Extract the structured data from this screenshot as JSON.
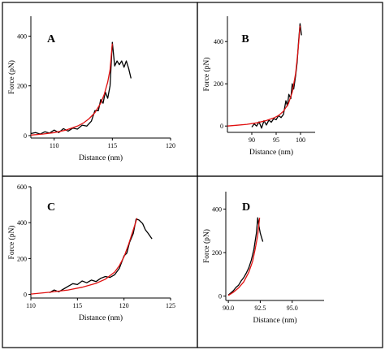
{
  "chart_data": [
    {
      "type": "line",
      "panel_label": "A",
      "xlabel": "Distance (nm)",
      "ylabel": "Force (pN)",
      "xlim": [
        108,
        120
      ],
      "ylim": [
        -10,
        480
      ],
      "xticks": [
        110,
        115,
        120
      ],
      "yticks": [
        0,
        200,
        400
      ],
      "series": [
        {
          "role": "measured",
          "color": "#000000",
          "x": [
            108.0,
            108.4,
            108.8,
            109.2,
            109.6,
            110.0,
            110.4,
            110.8,
            111.2,
            111.6,
            112.0,
            112.4,
            112.8,
            113.2,
            113.5,
            113.8,
            114.0,
            114.2,
            114.4,
            114.6,
            114.8,
            115.0,
            115.2,
            115.4,
            115.6,
            115.8,
            116.0,
            116.2,
            116.4,
            116.6
          ],
          "y": [
            8,
            12,
            6,
            15,
            10,
            22,
            12,
            28,
            18,
            30,
            26,
            42,
            38,
            58,
            100,
            100,
            145,
            130,
            175,
            150,
            200,
            375,
            280,
            300,
            285,
            300,
            275,
            300,
            270,
            230
          ]
        },
        {
          "role": "fit",
          "color": "#e01010",
          "x": [
            108.0,
            109.0,
            110.0,
            111.0,
            112.0,
            112.5,
            113.0,
            113.5,
            114.0,
            114.3,
            114.6,
            114.8,
            115.0
          ],
          "y": [
            2,
            6,
            12,
            22,
            38,
            50,
            68,
            92,
            130,
            165,
            215,
            265,
            370
          ]
        }
      ]
    },
    {
      "type": "line",
      "panel_label": "B",
      "xlabel": "Distance (nm)",
      "ylabel": "Force (pN)",
      "xlim": [
        85,
        103
      ],
      "ylim": [
        -30,
        520
      ],
      "xticks": [
        90,
        95,
        100
      ],
      "yticks": [
        0,
        200,
        400
      ],
      "series": [
        {
          "role": "measured",
          "color": "#000000",
          "x": [
            90.0,
            90.5,
            91.0,
            91.5,
            92.0,
            92.5,
            93.0,
            93.5,
            94.0,
            94.5,
            95.0,
            95.5,
            96.0,
            96.5,
            97.0,
            97.3,
            97.6,
            98.0,
            98.3,
            98.6,
            99.0,
            99.3,
            99.6,
            99.9,
            100.2
          ],
          "y": [
            -5,
            10,
            0,
            20,
            -10,
            25,
            5,
            28,
            18,
            35,
            30,
            50,
            40,
            55,
            120,
            95,
            150,
            130,
            200,
            175,
            240,
            300,
            400,
            485,
            430
          ]
        },
        {
          "role": "fit",
          "color": "#e01010",
          "x": [
            85.0,
            87.0,
            89.0,
            91.0,
            93.0,
            94.5,
            95.5,
            96.5,
            97.5,
            98.3,
            99.0,
            99.5,
            99.9
          ],
          "y": [
            0,
            4,
            8,
            15,
            26,
            38,
            50,
            70,
            105,
            160,
            250,
            360,
            475
          ]
        }
      ]
    },
    {
      "type": "line",
      "panel_label": "C",
      "xlabel": "Distance (nm)",
      "ylabel": "Force (pN)",
      "xlim": [
        110,
        125
      ],
      "ylim": [
        -20,
        600
      ],
      "xticks": [
        110,
        115,
        120,
        125
      ],
      "yticks": [
        0,
        200,
        400,
        600
      ],
      "series": [
        {
          "role": "measured",
          "color": "#000000",
          "x": [
            112.0,
            112.5,
            113.0,
            113.5,
            114.0,
            114.5,
            115.0,
            115.5,
            116.0,
            116.5,
            117.0,
            117.5,
            118.0,
            118.5,
            119.0,
            119.5,
            120.0,
            120.3,
            120.6,
            121.0,
            121.3,
            121.6,
            122.0,
            122.3,
            122.6,
            123.0
          ],
          "y": [
            10,
            25,
            15,
            30,
            45,
            60,
            55,
            75,
            65,
            80,
            72,
            90,
            100,
            95,
            110,
            145,
            215,
            230,
            290,
            340,
            420,
            415,
            395,
            360,
            340,
            310
          ]
        },
        {
          "role": "fit",
          "color": "#e01010",
          "x": [
            110.0,
            112.0,
            114.0,
            115.5,
            117.0,
            118.0,
            119.0,
            119.5,
            120.0,
            120.5,
            121.0,
            121.4
          ],
          "y": [
            2,
            12,
            25,
            40,
            62,
            85,
            125,
            160,
            210,
            280,
            360,
            425
          ]
        }
      ]
    },
    {
      "type": "line",
      "panel_label": "D",
      "xlabel": "Distance (nm)",
      "ylabel": "Force (pN)",
      "xlim": [
        89.8,
        97.5
      ],
      "ylim": [
        -20,
        480
      ],
      "xticks": [
        90.0,
        92.5,
        95.0
      ],
      "xtick_labels": [
        "90.0",
        "92.5",
        "95.0"
      ],
      "yticks": [
        0,
        200,
        400
      ],
      "series": [
        {
          "role": "measured",
          "color": "#000000",
          "x": [
            90.0,
            90.2,
            90.4,
            90.6,
            90.8,
            91.0,
            91.2,
            91.4,
            91.6,
            91.8,
            92.0,
            92.2,
            92.3,
            92.4,
            92.5,
            92.6,
            92.7
          ],
          "y": [
            5,
            15,
            25,
            40,
            50,
            70,
            85,
            105,
            130,
            165,
            215,
            290,
            360,
            320,
            290,
            270,
            250
          ]
        },
        {
          "role": "fit",
          "color": "#e01010",
          "x": [
            90.0,
            90.4,
            90.8,
            91.2,
            91.6,
            91.9,
            92.1,
            92.3,
            92.45
          ],
          "y": [
            3,
            18,
            38,
            65,
            110,
            160,
            215,
            280,
            360
          ]
        }
      ]
    }
  ]
}
